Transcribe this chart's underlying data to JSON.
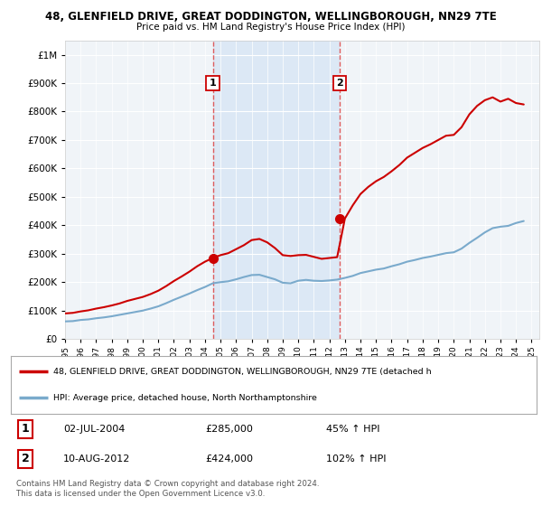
{
  "title1": "48, GLENFIELD DRIVE, GREAT DODDINGTON, WELLINGBOROUGH, NN29 7TE",
  "title2": "Price paid vs. HM Land Registry's House Price Index (HPI)",
  "red_label": "48, GLENFIELD DRIVE, GREAT DODDINGTON, WELLINGBOROUGH, NN29 7TE (detached h",
  "blue_label": "HPI: Average price, detached house, North Northamptonshire",
  "sale1_date": "02-JUL-2004",
  "sale1_price": 285000,
  "sale1_hpi": "45% ↑ HPI",
  "sale2_date": "10-AUG-2012",
  "sale2_price": 424000,
  "sale2_hpi": "102% ↑ HPI",
  "footer1": "Contains HM Land Registry data © Crown copyright and database right 2024.",
  "footer2": "This data is licensed under the Open Government Licence v3.0.",
  "ylim": [
    0,
    1050000
  ],
  "xlim_left": 1995.0,
  "xlim_right": 2025.5,
  "background_color": "#ffffff",
  "plot_bg_color": "#f0f4f8",
  "red_color": "#cc0000",
  "blue_color": "#7aaacc",
  "dashed_color": "#dd4444",
  "shade_color": "#dce8f5",
  "sale1_year": 2004.5,
  "sale2_year": 2012.65,
  "hpi_times": [
    1995.0,
    1995.5,
    1996.0,
    1996.5,
    1997.0,
    1997.5,
    1998.0,
    1998.5,
    1999.0,
    1999.5,
    2000.0,
    2000.5,
    2001.0,
    2001.5,
    2002.0,
    2002.5,
    2003.0,
    2003.5,
    2004.0,
    2004.5,
    2005.0,
    2005.5,
    2006.0,
    2006.5,
    2007.0,
    2007.5,
    2008.0,
    2008.5,
    2009.0,
    2009.5,
    2010.0,
    2010.5,
    2011.0,
    2011.5,
    2012.0,
    2012.5,
    2013.0,
    2013.5,
    2014.0,
    2014.5,
    2015.0,
    2015.5,
    2016.0,
    2016.5,
    2017.0,
    2017.5,
    2018.0,
    2018.5,
    2019.0,
    2019.5,
    2020.0,
    2020.5,
    2021.0,
    2021.5,
    2022.0,
    2022.5,
    2023.0,
    2023.5,
    2024.0,
    2024.5
  ],
  "hpi_values": [
    62000,
    63000,
    67000,
    69000,
    73000,
    76000,
    80000,
    85000,
    90000,
    95000,
    100000,
    107000,
    115000,
    126000,
    138000,
    149000,
    160000,
    172000,
    183000,
    196000,
    200000,
    203000,
    210000,
    218000,
    225000,
    226000,
    218000,
    210000,
    198000,
    196000,
    205000,
    208000,
    205000,
    204000,
    206000,
    209000,
    215000,
    222000,
    232000,
    238000,
    244000,
    248000,
    256000,
    263000,
    272000,
    278000,
    285000,
    290000,
    296000,
    302000,
    305000,
    318000,
    338000,
    356000,
    375000,
    390000,
    395000,
    398000,
    408000,
    415000
  ],
  "red_times": [
    1995.0,
    1995.5,
    1996.0,
    1996.5,
    1997.0,
    1997.5,
    1998.0,
    1998.5,
    1999.0,
    1999.5,
    2000.0,
    2000.5,
    2001.0,
    2001.5,
    2002.0,
    2002.5,
    2003.0,
    2003.5,
    2004.0,
    2004.5,
    2005.0,
    2005.5,
    2006.0,
    2006.5,
    2007.0,
    2007.5,
    2008.0,
    2008.5,
    2009.0,
    2009.5,
    2010.0,
    2010.5,
    2011.0,
    2011.5,
    2012.0,
    2012.5,
    2013.0,
    2013.5,
    2014.0,
    2014.5,
    2015.0,
    2015.5,
    2016.0,
    2016.5,
    2017.0,
    2017.5,
    2018.0,
    2018.5,
    2019.0,
    2019.5,
    2020.0,
    2020.5,
    2021.0,
    2021.5,
    2022.0,
    2022.5,
    2023.0,
    2023.5,
    2024.0,
    2024.5
  ],
  "red_values": [
    90000,
    92000,
    97000,
    101000,
    107000,
    112000,
    118000,
    125000,
    134000,
    141000,
    148000,
    158000,
    170000,
    186000,
    204000,
    220000,
    237000,
    256000,
    272000,
    285000,
    295000,
    302000,
    316000,
    330000,
    348000,
    352000,
    340000,
    320000,
    295000,
    292000,
    295000,
    296000,
    289000,
    282000,
    285000,
    288000,
    424000,
    470000,
    510000,
    535000,
    555000,
    570000,
    590000,
    612000,
    638000,
    655000,
    672000,
    685000,
    700000,
    715000,
    718000,
    745000,
    790000,
    820000,
    840000,
    850000,
    835000,
    845000,
    830000,
    825000
  ]
}
